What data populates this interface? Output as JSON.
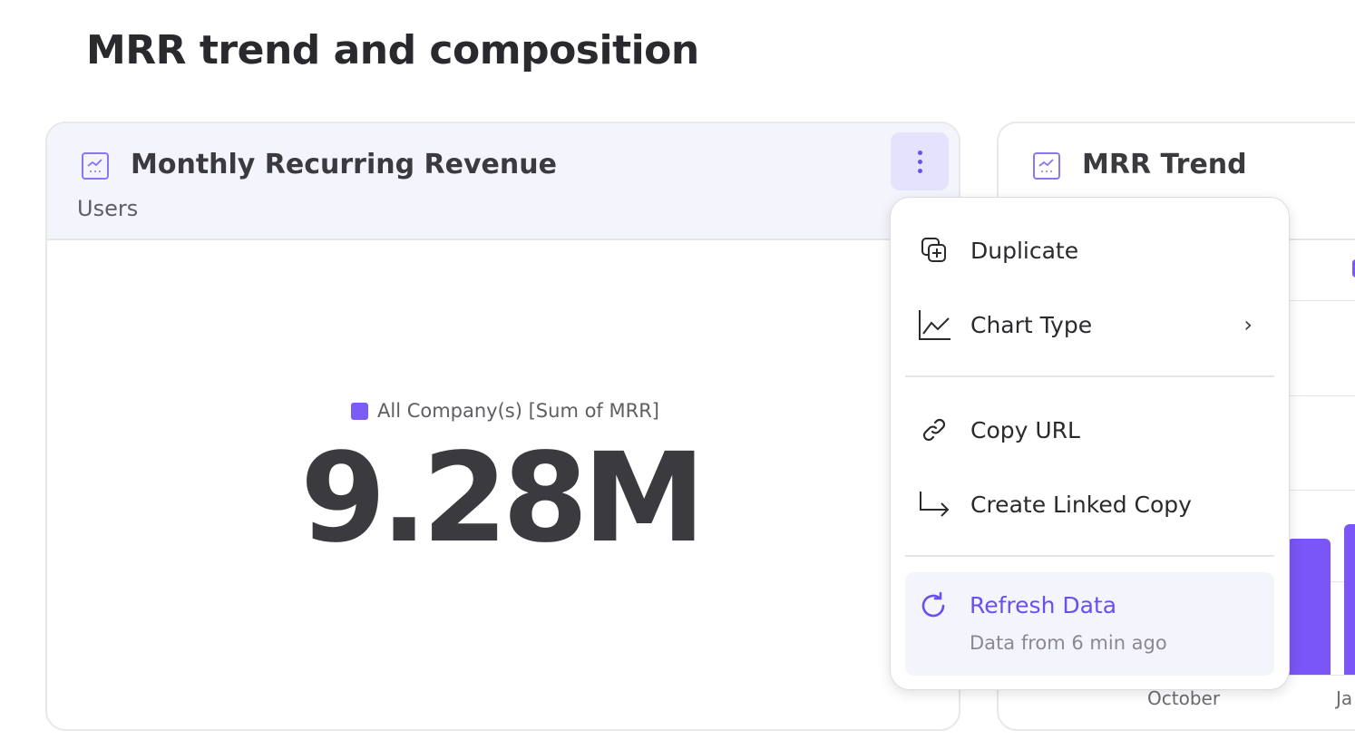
{
  "page_title": "MRR trend and composition",
  "cards": [
    {
      "title": "Monthly Recurring Revenue",
      "subtitle": "Users",
      "legend": "All Company(s) [Sum of MRR]",
      "value": "9.28M",
      "icon": "line-chart-icon"
    },
    {
      "title": "MRR Trend",
      "icon": "line-chart-icon",
      "x_labels": [
        "October",
        "Ja"
      ]
    }
  ],
  "menu": {
    "items": [
      {
        "label": "Duplicate",
        "icon": "duplicate-icon"
      },
      {
        "label": "Chart Type",
        "icon": "line-chart-icon",
        "submenu": true
      },
      {
        "label": "Copy URL",
        "icon": "link-icon"
      },
      {
        "label": "Create Linked Copy",
        "icon": "linked-arrow-icon"
      }
    ],
    "refresh": {
      "label": "Refresh Data",
      "sub": "Data from 6 min ago",
      "icon": "refresh-icon"
    }
  },
  "colors": {
    "accent": "#7a55f7",
    "header_bg": "#f4f4fc",
    "text": "#3b3a3f"
  }
}
